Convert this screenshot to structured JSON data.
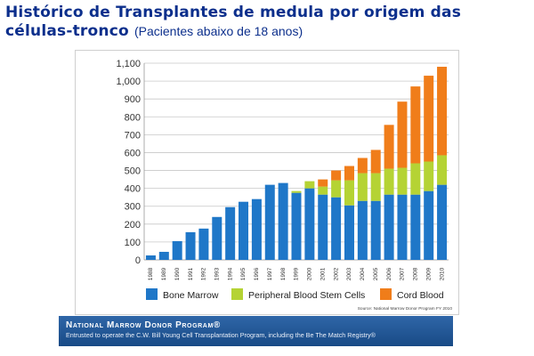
{
  "header": {
    "title": "Histórico de Transplantes de medula por origem das células-tronco",
    "subtitle": "(Pacientes abaixo de 18 anos)"
  },
  "chart_data": {
    "type": "bar",
    "stacked": true,
    "categories": [
      "1988",
      "1989",
      "1990",
      "1991",
      "1992",
      "1993",
      "1994",
      "1995",
      "1996",
      "1997",
      "1998",
      "1999",
      "2000",
      "2001",
      "2002",
      "2003",
      "2004",
      "2005",
      "2006",
      "2007",
      "2008",
      "2009",
      "2010"
    ],
    "series": [
      {
        "name": "Bone Marrow",
        "color": "#1f77c8",
        "values": [
          25,
          45,
          105,
          155,
          175,
          240,
          295,
          325,
          340,
          420,
          430,
          375,
          400,
          365,
          350,
          305,
          330,
          330,
          365,
          365,
          365,
          385,
          420
        ]
      },
      {
        "name": "Peripheral Blood Stem Cells",
        "color": "#b5d334",
        "values": [
          0,
          0,
          0,
          0,
          0,
          0,
          0,
          0,
          0,
          0,
          0,
          10,
          40,
          45,
          95,
          140,
          155,
          155,
          145,
          150,
          175,
          165,
          165
        ]
      },
      {
        "name": "Cord Blood",
        "color": "#f07d1a",
        "values": [
          0,
          0,
          0,
          0,
          0,
          0,
          0,
          0,
          0,
          0,
          0,
          0,
          0,
          40,
          55,
          80,
          85,
          130,
          245,
          370,
          430,
          480,
          495
        ]
      }
    ],
    "ylim": [
      0,
      1100
    ],
    "yticks": [
      "1,100",
      "1,000",
      "900",
      "800",
      "700",
      "600",
      "500",
      "400",
      "300",
      "200",
      "100",
      "0"
    ],
    "ytick_values": [
      1100,
      1000,
      900,
      800,
      700,
      600,
      500,
      400,
      300,
      200,
      100,
      0
    ],
    "grid": true,
    "legend_position": "bottom",
    "source": "Source: National Marrow Donor Program FY 2010"
  },
  "footer": {
    "title": "National Marrow Donor Program®",
    "subtitle": "Entrusted to operate the C.W. Bill Young Cell Transplantation Program, including the Be The Match Registry®"
  }
}
